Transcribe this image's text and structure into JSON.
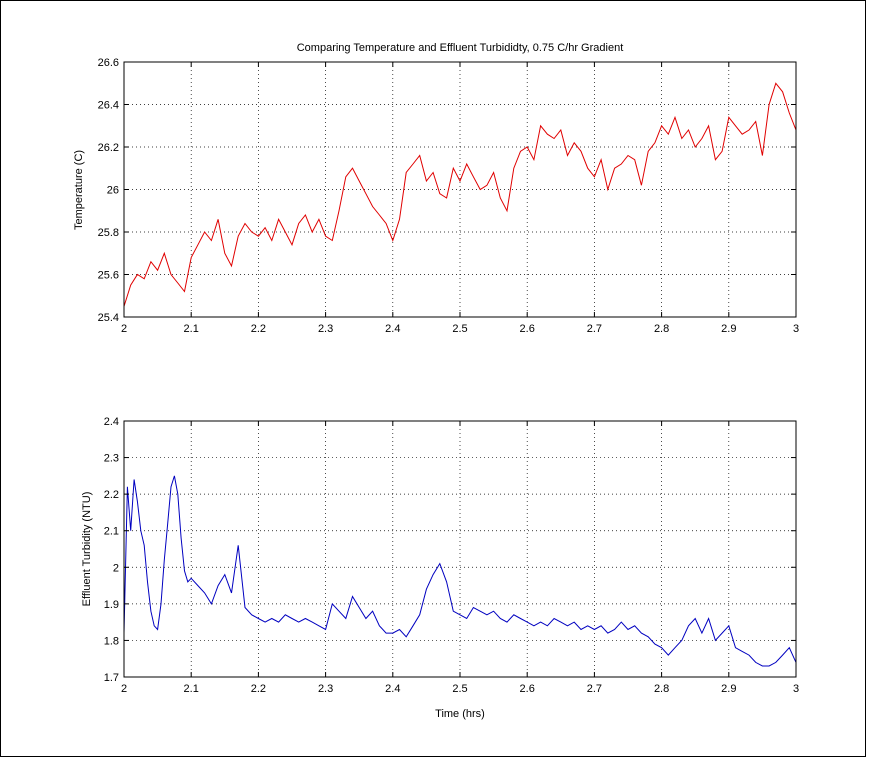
{
  "chart_data": [
    {
      "type": "line",
      "title": "Comparing Temperature and Effluent Turbididty, 0.75 C/hr Gradient",
      "xlabel": "",
      "ylabel": "Temperature (C)",
      "xlim": [
        2,
        3
      ],
      "ylim": [
        25.4,
        26.6
      ],
      "xticks": [
        "2",
        "2.1",
        "2.2",
        "2.3",
        "2.4",
        "2.5",
        "2.6",
        "2.7",
        "2.8",
        "2.9",
        "3"
      ],
      "yticks": [
        "25.4",
        "25.6",
        "25.8",
        "26",
        "26.2",
        "26.4",
        "26.6"
      ],
      "grid": true,
      "series": [
        {
          "color": "#e00000",
          "x": [
            2.0,
            2.01,
            2.02,
            2.03,
            2.04,
            2.05,
            2.06,
            2.07,
            2.08,
            2.09,
            2.1,
            2.11,
            2.12,
            2.13,
            2.14,
            2.15,
            2.16,
            2.17,
            2.18,
            2.19,
            2.2,
            2.21,
            2.22,
            2.23,
            2.24,
            2.25,
            2.26,
            2.27,
            2.28,
            2.29,
            2.3,
            2.31,
            2.32,
            2.33,
            2.34,
            2.35,
            2.36,
            2.37,
            2.38,
            2.39,
            2.4,
            2.41,
            2.42,
            2.43,
            2.44,
            2.45,
            2.46,
            2.47,
            2.48,
            2.49,
            2.5,
            2.51,
            2.52,
            2.53,
            2.54,
            2.55,
            2.56,
            2.57,
            2.58,
            2.59,
            2.6,
            2.61,
            2.62,
            2.63,
            2.64,
            2.65,
            2.66,
            2.67,
            2.68,
            2.69,
            2.7,
            2.71,
            2.72,
            2.73,
            2.74,
            2.75,
            2.76,
            2.77,
            2.78,
            2.79,
            2.8,
            2.81,
            2.82,
            2.83,
            2.84,
            2.85,
            2.86,
            2.87,
            2.88,
            2.89,
            2.9,
            2.91,
            2.92,
            2.93,
            2.94,
            2.95,
            2.96,
            2.97,
            2.98,
            2.99,
            3.0
          ],
          "y": [
            25.45,
            25.55,
            25.6,
            25.58,
            25.66,
            25.62,
            25.7,
            25.6,
            25.56,
            25.52,
            25.68,
            25.74,
            25.8,
            25.76,
            25.86,
            25.7,
            25.64,
            25.78,
            25.84,
            25.8,
            25.78,
            25.82,
            25.76,
            25.86,
            25.8,
            25.74,
            25.84,
            25.88,
            25.8,
            25.86,
            25.78,
            25.76,
            25.9,
            26.06,
            26.1,
            26.04,
            25.98,
            25.92,
            25.88,
            25.84,
            25.76,
            25.86,
            26.08,
            26.12,
            26.16,
            26.04,
            26.08,
            25.98,
            25.96,
            26.1,
            26.04,
            26.12,
            26.06,
            26.0,
            26.02,
            26.08,
            25.96,
            25.9,
            26.1,
            26.18,
            26.2,
            26.14,
            26.3,
            26.26,
            26.24,
            26.28,
            26.16,
            26.22,
            26.18,
            26.1,
            26.06,
            26.14,
            26.0,
            26.1,
            26.12,
            26.16,
            26.14,
            26.02,
            26.18,
            26.22,
            26.3,
            26.26,
            26.34,
            26.24,
            26.28,
            26.2,
            26.24,
            26.3,
            26.14,
            26.18,
            26.34,
            26.3,
            26.26,
            26.28,
            26.32,
            26.16,
            26.4,
            26.5,
            26.46,
            26.36,
            26.28
          ]
        }
      ]
    },
    {
      "type": "line",
      "title": "",
      "xlabel": "Time (hrs)",
      "ylabel": "Effluent Turbidity (NTU)",
      "xlim": [
        2,
        3
      ],
      "ylim": [
        1.7,
        2.4
      ],
      "xticks": [
        "2",
        "2.1",
        "2.2",
        "2.3",
        "2.4",
        "2.5",
        "2.6",
        "2.7",
        "2.8",
        "2.9",
        "3"
      ],
      "yticks": [
        "1.7",
        "1.8",
        "1.9",
        "2",
        "2.1",
        "2.2",
        "2.3",
        "2.4"
      ],
      "grid": true,
      "series": [
        {
          "color": "#0000c0",
          "x": [
            2.0,
            2.005,
            2.01,
            2.015,
            2.02,
            2.025,
            2.03,
            2.035,
            2.04,
            2.045,
            2.05,
            2.055,
            2.06,
            2.065,
            2.07,
            2.075,
            2.08,
            2.085,
            2.09,
            2.095,
            2.1,
            2.11,
            2.12,
            2.13,
            2.14,
            2.15,
            2.16,
            2.17,
            2.18,
            2.19,
            2.2,
            2.21,
            2.22,
            2.23,
            2.24,
            2.25,
            2.26,
            2.27,
            2.28,
            2.29,
            2.3,
            2.31,
            2.32,
            2.33,
            2.34,
            2.35,
            2.36,
            2.37,
            2.38,
            2.39,
            2.4,
            2.41,
            2.42,
            2.43,
            2.44,
            2.45,
            2.46,
            2.47,
            2.48,
            2.49,
            2.5,
            2.51,
            2.52,
            2.53,
            2.54,
            2.55,
            2.56,
            2.57,
            2.58,
            2.59,
            2.6,
            2.61,
            2.62,
            2.63,
            2.64,
            2.65,
            2.66,
            2.67,
            2.68,
            2.69,
            2.7,
            2.71,
            2.72,
            2.73,
            2.74,
            2.75,
            2.76,
            2.77,
            2.78,
            2.79,
            2.8,
            2.81,
            2.82,
            2.83,
            2.84,
            2.85,
            2.86,
            2.87,
            2.88,
            2.89,
            2.9,
            2.91,
            2.92,
            2.93,
            2.94,
            2.95,
            2.96,
            2.97,
            2.98,
            2.99,
            3.0
          ],
          "y": [
            1.82,
            2.22,
            2.1,
            2.24,
            2.18,
            2.1,
            2.06,
            1.96,
            1.88,
            1.84,
            1.83,
            1.9,
            2.02,
            2.12,
            2.22,
            2.25,
            2.2,
            2.08,
            1.99,
            1.96,
            1.97,
            1.95,
            1.93,
            1.9,
            1.95,
            1.98,
            1.93,
            2.06,
            1.89,
            1.87,
            1.86,
            1.85,
            1.86,
            1.85,
            1.87,
            1.86,
            1.85,
            1.86,
            1.85,
            1.84,
            1.83,
            1.9,
            1.88,
            1.86,
            1.92,
            1.89,
            1.86,
            1.88,
            1.84,
            1.82,
            1.82,
            1.83,
            1.81,
            1.84,
            1.87,
            1.94,
            1.98,
            2.01,
            1.96,
            1.88,
            1.87,
            1.86,
            1.89,
            1.88,
            1.87,
            1.88,
            1.86,
            1.85,
            1.87,
            1.86,
            1.85,
            1.84,
            1.85,
            1.84,
            1.86,
            1.85,
            1.84,
            1.85,
            1.83,
            1.84,
            1.83,
            1.84,
            1.82,
            1.83,
            1.85,
            1.83,
            1.84,
            1.82,
            1.81,
            1.79,
            1.78,
            1.76,
            1.78,
            1.8,
            1.84,
            1.86,
            1.82,
            1.86,
            1.8,
            1.82,
            1.84,
            1.78,
            1.77,
            1.76,
            1.74,
            1.73,
            1.73,
            1.74,
            1.76,
            1.78,
            1.74
          ]
        }
      ]
    }
  ]
}
